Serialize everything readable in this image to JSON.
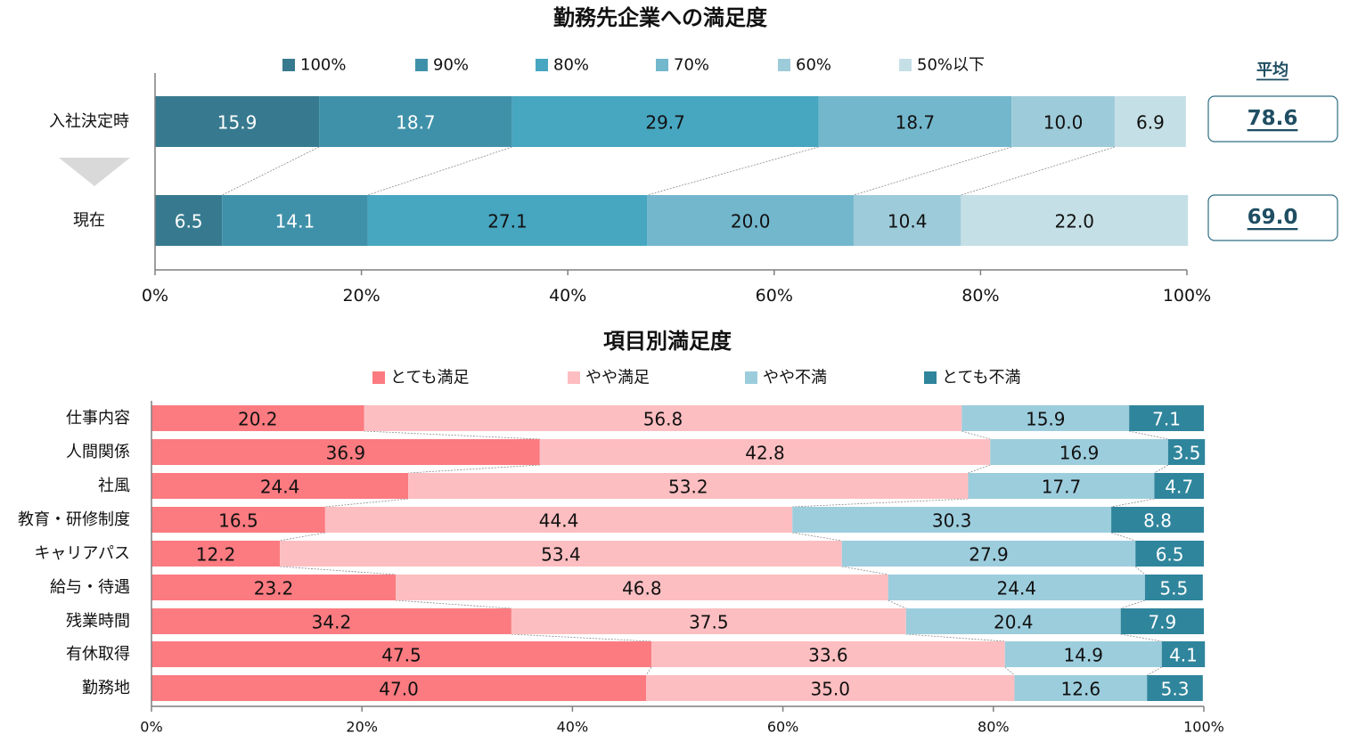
{
  "chart_data": [
    {
      "type": "bar",
      "orientation": "horizontal",
      "stacked": "percent",
      "title": "勤務先企業への満足度",
      "categories": [
        "入社決定時",
        "現在"
      ],
      "series": [
        {
          "name": "100%",
          "color": "#377a8f",
          "values": [
            15.9,
            6.5
          ]
        },
        {
          "name": "90%",
          "color": "#3f91a9",
          "values": [
            18.7,
            14.1
          ]
        },
        {
          "name": "80%",
          "color": "#47a6c0",
          "values": [
            29.7,
            27.1
          ]
        },
        {
          "name": "70%",
          "color": "#73b7cd",
          "values": [
            18.7,
            20.0
          ]
        },
        {
          "name": "60%",
          "color": "#9ecbd9",
          "values": [
            10.0,
            10.4
          ]
        },
        {
          "name": "50%以下",
          "color": "#c5dfe6",
          "values": [
            6.9,
            22.0
          ]
        }
      ],
      "xticks": [
        "0%",
        "20%",
        "40%",
        "60%",
        "80%",
        "100%"
      ],
      "xlim": [
        0,
        100
      ],
      "legend": "top",
      "average": {
        "label": "平均",
        "values": [
          "78.6",
          "69.0"
        ]
      },
      "connector_lines": true
    },
    {
      "type": "bar",
      "orientation": "horizontal",
      "stacked": "percent",
      "title": "項目別満足度",
      "categories": [
        "仕事内容",
        "人間関係",
        "社風",
        "教育・研修制度",
        "キャリアパス",
        "給与・待遇",
        "残業時間",
        "有休取得",
        "勤務地"
      ],
      "series": [
        {
          "name": "とても満足",
          "color": "#fb7b80",
          "values": [
            20.2,
            36.9,
            24.4,
            16.5,
            12.2,
            23.2,
            34.2,
            47.5,
            47.0
          ]
        },
        {
          "name": "やや満足",
          "color": "#fdbec1",
          "values": [
            56.8,
            42.8,
            53.2,
            44.4,
            53.4,
            46.8,
            37.5,
            33.6,
            35.0
          ]
        },
        {
          "name": "やや不満",
          "color": "#9ccddd",
          "values": [
            15.9,
            16.9,
            17.7,
            30.3,
            27.9,
            24.4,
            20.4,
            14.9,
            12.6
          ]
        },
        {
          "name": "とても不満",
          "color": "#2f859c",
          "values": [
            7.1,
            3.5,
            4.7,
            8.8,
            6.5,
            5.5,
            7.9,
            4.1,
            5.3
          ]
        }
      ],
      "xticks": [
        "0%",
        "20%",
        "40%",
        "60%",
        "80%",
        "100%"
      ],
      "xlim": [
        0,
        100
      ],
      "legend": "top",
      "connector_lines": true
    }
  ]
}
